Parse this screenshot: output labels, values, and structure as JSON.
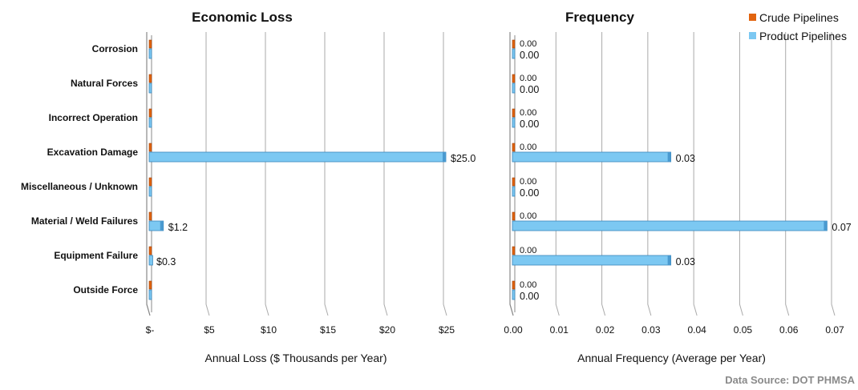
{
  "colors": {
    "crude": "#e2640f",
    "product": "#7cc8f2",
    "grid": "#aaaaaa",
    "axis": "#888888",
    "text": "#111111"
  },
  "legend": {
    "crude_label": "Crude Pipelines",
    "product_label": "Product Pipelines"
  },
  "source_label": "Data Source: DOT PHMSA",
  "chart_data": [
    {
      "type": "bar",
      "orientation": "horizontal",
      "title": "Economic Loss",
      "xlabel": "Annual Loss ($ Thousands per Year)",
      "xlim": [
        0,
        25
      ],
      "xticks": [
        "$-",
        "$5",
        "$10",
        "$15",
        "$20",
        "$25"
      ],
      "grid": true,
      "categories": [
        "Corrosion",
        "Natural Forces",
        "Incorrect Operation",
        "Excavation Damage",
        "Miscellaneous / Unknown",
        "Material / Weld Failures",
        "Equipment Failure",
        "Outside Force"
      ],
      "series": [
        {
          "name": "Crude Pipelines",
          "values": [
            0,
            0,
            0,
            0,
            0,
            0,
            0,
            0
          ],
          "labels": [
            "",
            "",
            "",
            "",
            "",
            "",
            "",
            ""
          ]
        },
        {
          "name": "Product Pipelines",
          "values": [
            0,
            0,
            0,
            25.0,
            0,
            1.2,
            0.3,
            0
          ],
          "labels": [
            "",
            "",
            "",
            "$25.0",
            "",
            "$1.2",
            "$0.3",
            ""
          ]
        }
      ]
    },
    {
      "type": "bar",
      "orientation": "horizontal",
      "title": "Frequency",
      "xlabel": "Annual Frequency (Average per Year)",
      "xlim": [
        0,
        0.07
      ],
      "xticks": [
        "0.00",
        "0.01",
        "0.02",
        "0.03",
        "0.04",
        "0.05",
        "0.06",
        "0.07"
      ],
      "grid": true,
      "categories": [
        "Corrosion",
        "Natural Forces",
        "Incorrect Operation",
        "Excavation Damage",
        "Miscellaneous / Unknown",
        "Material / Weld Failures",
        "Equipment Failure",
        "Outside Force"
      ],
      "series": [
        {
          "name": "Crude Pipelines",
          "values": [
            0,
            0,
            0,
            0,
            0,
            0,
            0,
            0
          ],
          "labels": [
            "0.00",
            "0.00",
            "0.00",
            "0.00",
            "0.00",
            "0.00",
            "0.00",
            "0.00"
          ]
        },
        {
          "name": "Product Pipelines",
          "values": [
            0,
            0,
            0,
            0.0345,
            0,
            0.0685,
            0.0345,
            0
          ],
          "labels": [
            "0.00",
            "0.00",
            "0.00",
            "0.03",
            "0.00",
            "0.07",
            "0.03",
            "0.00"
          ]
        }
      ]
    }
  ]
}
